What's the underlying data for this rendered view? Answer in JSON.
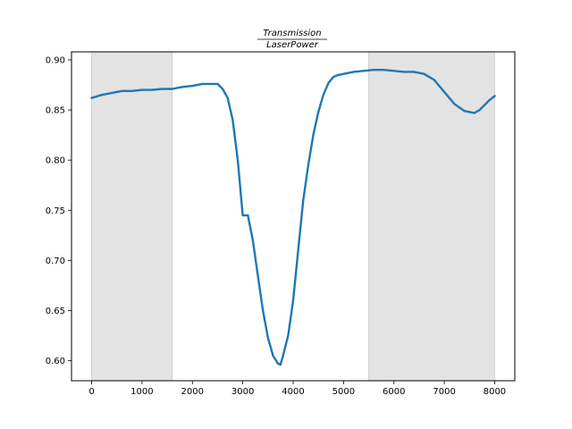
{
  "chart_data": {
    "type": "line",
    "title": {
      "numerator": "Transmission",
      "denominator": "LaserPower"
    },
    "xlabel": "",
    "ylabel": "",
    "xlim": [
      -400,
      8400
    ],
    "ylim": [
      0.58,
      0.908
    ],
    "x_ticks": [
      0,
      1000,
      2000,
      3000,
      4000,
      5000,
      6000,
      7000,
      8000
    ],
    "x_tick_labels": [
      "0",
      "1000",
      "2000",
      "3000",
      "4000",
      "5000",
      "6000",
      "7000",
      "8000"
    ],
    "y_ticks": [
      0.6,
      0.65,
      0.7,
      0.75,
      0.8,
      0.85,
      0.9
    ],
    "y_tick_labels": [
      "0.60",
      "0.65",
      "0.70",
      "0.75",
      "0.80",
      "0.85",
      "0.90"
    ],
    "grid": false,
    "shaded_regions": [
      {
        "x0": 0,
        "x1": 1600,
        "color": "#e3e3e3"
      },
      {
        "x0": 5500,
        "x1": 8000,
        "color": "#e3e3e3"
      }
    ],
    "series": [
      {
        "color": "#1f77b4",
        "x": [
          0,
          200,
          400,
          600,
          800,
          1000,
          1200,
          1400,
          1600,
          1800,
          2000,
          2200,
          2400,
          2500,
          2600,
          2700,
          2800,
          2900,
          3000,
          3100,
          3200,
          3300,
          3400,
          3500,
          3600,
          3700,
          3750,
          3800,
          3900,
          4000,
          4100,
          4200,
          4300,
          4400,
          4500,
          4600,
          4700,
          4800,
          4900,
          5000,
          5200,
          5400,
          5600,
          5800,
          6000,
          6200,
          6400,
          6600,
          6800,
          7000,
          7200,
          7400,
          7600,
          7700,
          7800,
          7900,
          8000
        ],
        "y": [
          0.862,
          0.865,
          0.867,
          0.869,
          0.869,
          0.87,
          0.87,
          0.871,
          0.871,
          0.873,
          0.874,
          0.876,
          0.876,
          0.876,
          0.871,
          0.862,
          0.84,
          0.8,
          0.745,
          0.745,
          0.72,
          0.685,
          0.65,
          0.623,
          0.605,
          0.597,
          0.596,
          0.605,
          0.625,
          0.66,
          0.71,
          0.76,
          0.795,
          0.825,
          0.848,
          0.865,
          0.877,
          0.883,
          0.885,
          0.886,
          0.888,
          0.889,
          0.89,
          0.89,
          0.889,
          0.888,
          0.888,
          0.886,
          0.88,
          0.868,
          0.856,
          0.849,
          0.847,
          0.85,
          0.855,
          0.86,
          0.864
        ]
      }
    ]
  }
}
